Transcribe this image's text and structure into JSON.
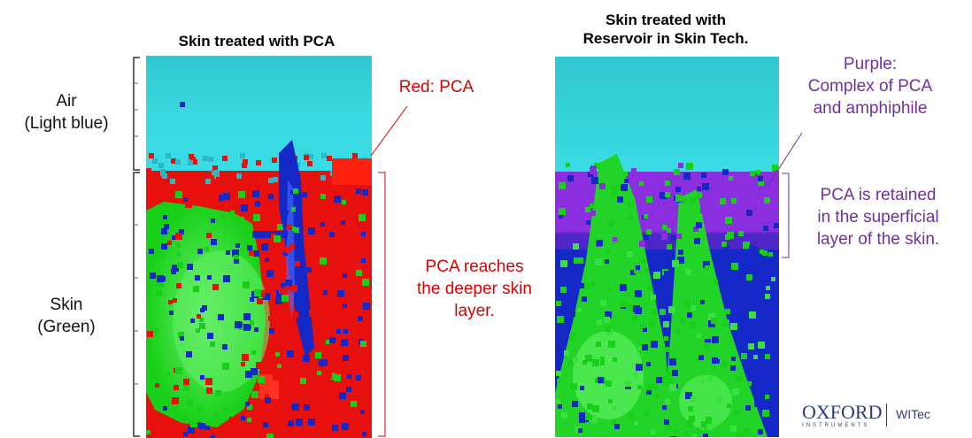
{
  "left_panel": {
    "title": "Skin treated with  PCA",
    "air_label": [
      "Air",
      "(Light blue)"
    ],
    "skin_label": [
      "Skin",
      "(Green)"
    ],
    "red_note": "Red: PCA",
    "deep_note": [
      "PCA reaches",
      "the deeper skin",
      "layer."
    ]
  },
  "right_panel": {
    "title": [
      "Skin treated with",
      "Reservoir in Skin Tech."
    ],
    "purple_note": [
      "Purple:",
      "Complex of PCA",
      "and amphiphile"
    ],
    "retained_note": [
      "PCA is retained",
      "in the superficial",
      "layer of the skin."
    ]
  },
  "colors": {
    "air": "#33d4dc",
    "pca": "#e8100c",
    "skin": "#18d018",
    "blue": "#1428c8",
    "complex": "#8a2ee0",
    "red_text": "#e00000",
    "purple_text": "#7030a0"
  },
  "logo": {
    "oxford": "OXFORD",
    "instruments": "INSTRUMENTS",
    "witec": "WITec"
  }
}
